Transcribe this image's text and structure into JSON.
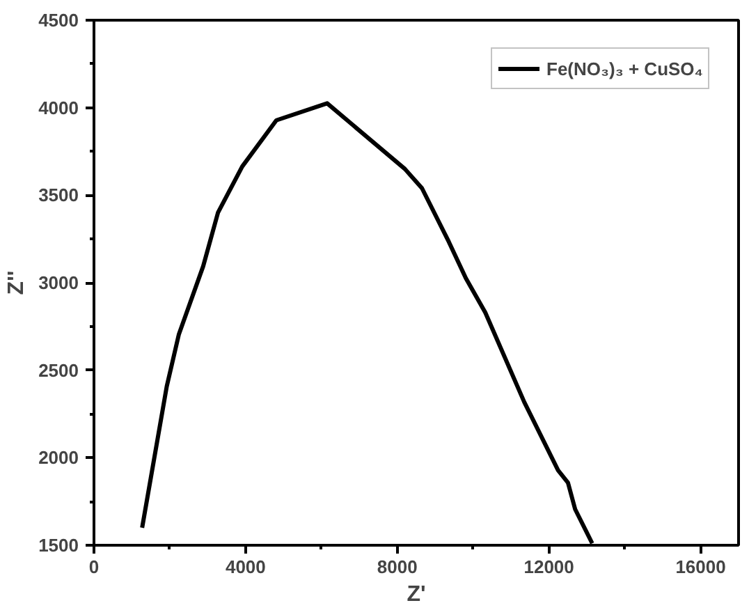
{
  "chart_data": {
    "type": "line",
    "xlabel": "Z'",
    "ylabel": "Z''",
    "x": [
      1270,
      1920,
      2240,
      2880,
      3270,
      3910,
      4810,
      6150,
      8200,
      8650,
      9360,
      9810,
      10320,
      11350,
      12240,
      12500,
      12690,
      13140
    ],
    "series": [
      {
        "name": "Fe(NO₃)₃ + CuSO₄",
        "color": "#000000",
        "values": [
          1600,
          2408,
          2706,
          3094,
          3400,
          3664,
          3928,
          4025,
          3650,
          3540,
          3233,
          3025,
          2830,
          2317,
          1928,
          1858,
          1706,
          1511
        ]
      }
    ],
    "xlim": [
      0,
      17000
    ],
    "xticks": [
      0,
      4000,
      8000,
      12000,
      16000
    ],
    "ylim": [
      1500,
      4500
    ],
    "yticks": [
      1500,
      2000,
      2500,
      3000,
      3500,
      4000,
      4500
    ],
    "grid": false,
    "legend": "top right",
    "marker": "none",
    "line_style": "solid"
  }
}
